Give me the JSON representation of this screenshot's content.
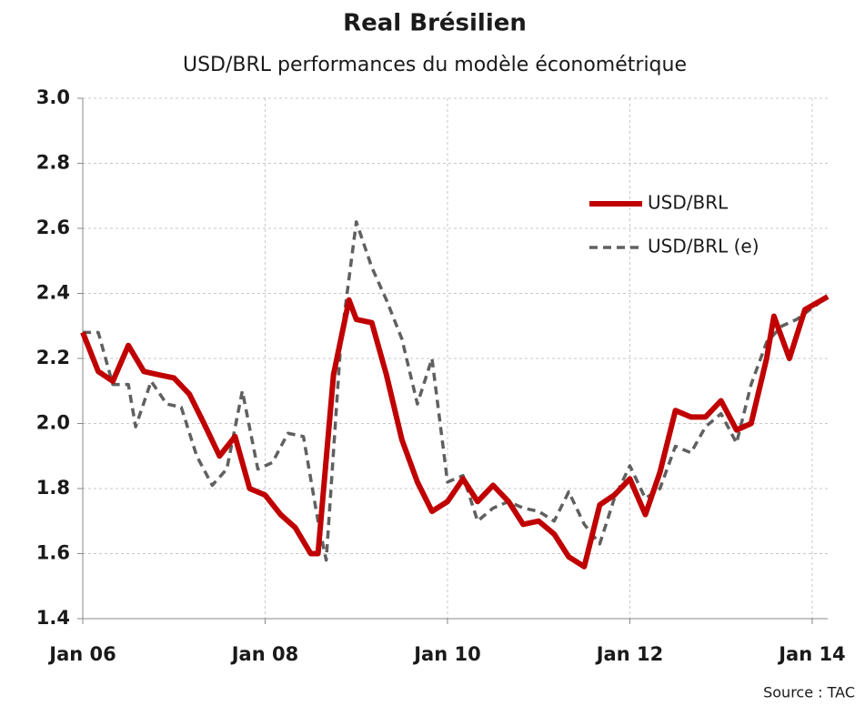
{
  "chart_data": {
    "type": "line",
    "title": "Real Brésilien",
    "subtitle": "USD/BRL performances du modèle économétrique",
    "source": "Source : TAC",
    "xlim": [
      2006,
      2014.17
    ],
    "ylim": [
      1.4,
      3.0
    ],
    "xticks": [
      {
        "value": 2006,
        "label": "Jan 06"
      },
      {
        "value": 2008,
        "label": "Jan 08"
      },
      {
        "value": 2010,
        "label": "Jan 10"
      },
      {
        "value": 2012,
        "label": "Jan 12"
      },
      {
        "value": 2014,
        "label": "Jan 14"
      }
    ],
    "yticks": [
      1.4,
      1.6,
      1.8,
      {
        "value": 2.0,
        "label": "2.0"
      },
      2.2,
      2.4,
      2.6,
      2.8,
      {
        "value": 3.0,
        "label": "3.0"
      }
    ],
    "grid": true,
    "legend": "upper right",
    "series": [
      {
        "name": "USD/BRL",
        "color": "#c00000",
        "style": "solid",
        "x": [
          2006.0,
          2006.17,
          2006.33,
          2006.5,
          2006.67,
          2006.83,
          2007.0,
          2007.17,
          2007.33,
          2007.5,
          2007.67,
          2007.83,
          2008.0,
          2008.17,
          2008.33,
          2008.5,
          2008.58,
          2008.75,
          2008.92,
          2009.0,
          2009.17,
          2009.33,
          2009.5,
          2009.67,
          2009.83,
          2010.0,
          2010.17,
          2010.33,
          2010.5,
          2010.67,
          2010.83,
          2011.0,
          2011.17,
          2011.33,
          2011.5,
          2011.67,
          2011.83,
          2012.0,
          2012.17,
          2012.33,
          2012.5,
          2012.67,
          2012.83,
          2013.0,
          2013.17,
          2013.33,
          2013.5,
          2013.58,
          2013.75,
          2013.92,
          2014.17
        ],
        "values": [
          2.28,
          2.16,
          2.13,
          2.24,
          2.16,
          2.15,
          2.14,
          2.09,
          2.0,
          1.9,
          1.96,
          1.8,
          1.78,
          1.72,
          1.68,
          1.6,
          1.6,
          2.15,
          2.38,
          2.32,
          2.31,
          2.15,
          1.95,
          1.82,
          1.73,
          1.76,
          1.83,
          1.76,
          1.81,
          1.76,
          1.69,
          1.7,
          1.66,
          1.59,
          1.56,
          1.75,
          1.78,
          1.83,
          1.72,
          1.85,
          2.04,
          2.02,
          2.02,
          2.07,
          1.98,
          2.0,
          2.2,
          2.33,
          2.2,
          2.35,
          2.39
        ]
      },
      {
        "name": "USD/BRL (e)",
        "color": "#606060",
        "style": "dashed",
        "x": [
          2006.0,
          2006.17,
          2006.33,
          2006.5,
          2006.58,
          2006.75,
          2006.92,
          2007.08,
          2007.25,
          2007.42,
          2007.58,
          2007.75,
          2007.92,
          2008.08,
          2008.25,
          2008.42,
          2008.58,
          2008.67,
          2008.83,
          2009.0,
          2009.17,
          2009.33,
          2009.5,
          2009.67,
          2009.83,
          2010.0,
          2010.17,
          2010.33,
          2010.5,
          2010.67,
          2010.83,
          2011.0,
          2011.17,
          2011.33,
          2011.5,
          2011.67,
          2011.83,
          2012.0,
          2012.17,
          2012.33,
          2012.5,
          2012.67,
          2012.83,
          2013.0,
          2013.17,
          2013.33,
          2013.5,
          2013.67,
          2013.83,
          2014.17
        ],
        "values": [
          2.28,
          2.28,
          2.12,
          2.12,
          1.99,
          2.13,
          2.06,
          2.05,
          1.9,
          1.81,
          1.86,
          2.1,
          1.86,
          1.88,
          1.97,
          1.96,
          1.7,
          1.58,
          2.25,
          2.62,
          2.48,
          2.38,
          2.26,
          2.06,
          2.2,
          1.82,
          1.84,
          1.7,
          1.74,
          1.76,
          1.74,
          1.73,
          1.7,
          1.79,
          1.69,
          1.63,
          1.77,
          1.87,
          1.77,
          1.8,
          1.93,
          1.91,
          1.99,
          2.03,
          1.94,
          2.12,
          2.25,
          2.3,
          2.32,
          2.39
        ]
      }
    ]
  }
}
